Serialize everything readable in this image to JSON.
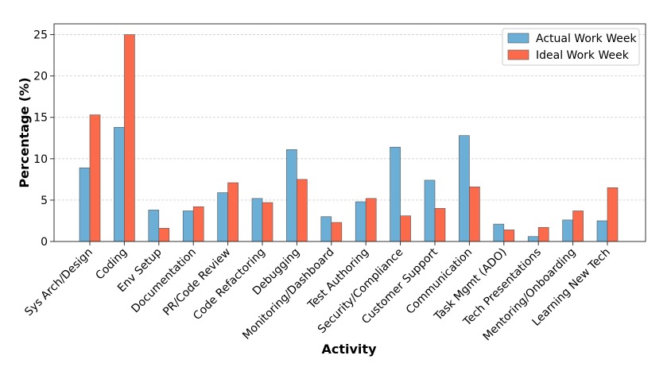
{
  "chart_data": {
    "type": "bar",
    "title": "",
    "xlabel": "Activity",
    "ylabel": "Percentage (%)",
    "ylim": [
      0,
      26.3
    ],
    "yticks": [
      0,
      5,
      10,
      15,
      20,
      25
    ],
    "grid": true,
    "legend_position": "top-right",
    "categories": [
      "Sys Arch/Design",
      "Coding",
      "Env Setup",
      "Documentation",
      "PR/Code Review",
      "Code Refactoring",
      "Debugging",
      "Monitoring/Dashboard",
      "Test Authoring",
      "Security/Compliance",
      "Customer Support",
      "Communication",
      "Task Mgmt (ADO)",
      "Tech Presentations",
      "Mentoring/Onboarding",
      "Learning New Tech"
    ],
    "series": [
      {
        "name": "Actual Work Week",
        "color": "#6baed6",
        "values": [
          8.9,
          13.8,
          3.8,
          3.7,
          5.9,
          5.2,
          11.1,
          3.0,
          4.8,
          11.4,
          7.4,
          12.8,
          2.1,
          0.6,
          2.6,
          2.5
        ]
      },
      {
        "name": "Ideal Work Week",
        "color": "#fb6a4a",
        "values": [
          15.3,
          25.0,
          1.6,
          4.2,
          7.1,
          4.7,
          7.5,
          2.3,
          5.2,
          3.1,
          4.0,
          6.6,
          1.4,
          1.7,
          3.7,
          6.5
        ]
      }
    ]
  }
}
